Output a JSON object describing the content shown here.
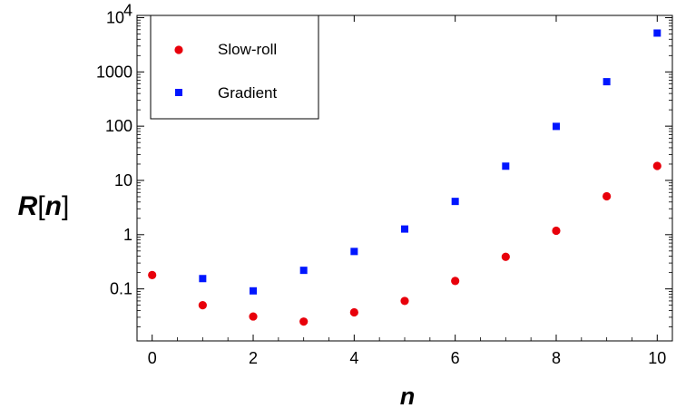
{
  "chart_data": {
    "type": "scatter",
    "xlabel": "n",
    "ylabel": "R[n]",
    "xlim": [
      -0.3,
      10.3
    ],
    "ylim": [
      0.011,
      11000
    ],
    "yscale": "log",
    "xticks": [
      0,
      2,
      4,
      6,
      8,
      10
    ],
    "yticks": [
      {
        "value": 0.1,
        "label": "0.1"
      },
      {
        "value": 1,
        "label": "1"
      },
      {
        "value": 10,
        "label": "10"
      },
      {
        "value": 100,
        "label": "100"
      },
      {
        "value": 1000,
        "label": "1000"
      },
      {
        "value": 10000,
        "label": "10",
        "exponent": "4"
      }
    ],
    "grid": false,
    "legend_position": "top-left",
    "series": [
      {
        "name": "Slow-roll",
        "marker": "circle",
        "color": "#e8000b",
        "x": [
          0,
          1,
          2,
          3,
          4,
          5,
          6,
          7,
          8,
          9,
          10
        ],
        "y": [
          0.18,
          0.05,
          0.031,
          0.025,
          0.037,
          0.06,
          0.14,
          0.39,
          1.18,
          5.1,
          18.5
        ]
      },
      {
        "name": "Gradient",
        "marker": "square",
        "color": "#0016ff",
        "x": [
          1,
          2,
          3,
          4,
          5,
          6,
          7,
          8,
          9,
          10
        ],
        "y": [
          0.155,
          0.092,
          0.22,
          0.49,
          1.27,
          4.1,
          18.3,
          99,
          660,
          5200
        ]
      }
    ]
  }
}
